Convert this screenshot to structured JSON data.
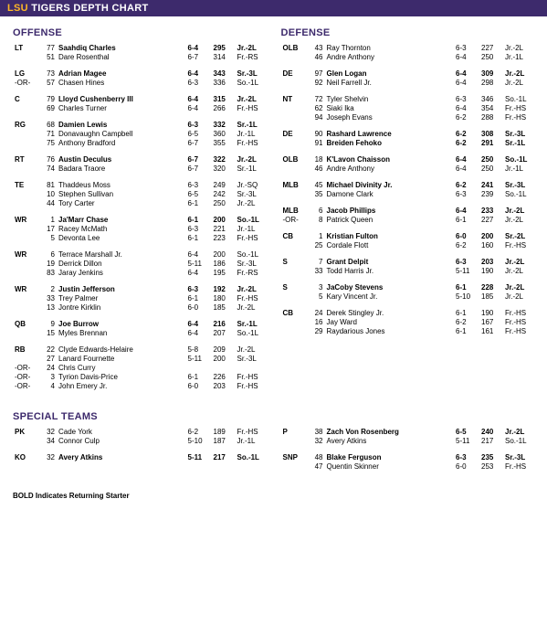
{
  "title": {
    "accent": "LSU",
    "suffix": " TIGERS DEPTH CHART"
  },
  "headers": {
    "offense": "OFFENSE",
    "defense": "DEFENSE",
    "special": "SPECIAL TEAMS"
  },
  "footnote": "BOLD Indicates Returning Starter",
  "offense": [
    {
      "pos": "LT",
      "rows": [
        {
          "s": true,
          "n": "77",
          "name": "Saahdiq Charles",
          "ht": "6-4",
          "wt": "295",
          "cl": "Jr.-2L"
        },
        {
          "s": false,
          "n": "51",
          "name": "Dare Rosenthal",
          "ht": "6-7",
          "wt": "314",
          "cl": "Fr.-RS"
        }
      ]
    },
    {
      "pos": "LG",
      "rows": [
        {
          "s": true,
          "n": "73",
          "name": "Adrian Magee",
          "ht": "6-4",
          "wt": "343",
          "cl": "Sr.-3L"
        },
        {
          "s": false,
          "or": true,
          "n": "57",
          "name": "Chasen Hines",
          "ht": "6-3",
          "wt": "336",
          "cl": "So.-1L"
        }
      ]
    },
    {
      "pos": "C",
      "rows": [
        {
          "s": true,
          "n": "79",
          "name": "Lloyd Cushenberry III",
          "ht": "6-4",
          "wt": "315",
          "cl": "Jr.-2L"
        },
        {
          "s": false,
          "n": "69",
          "name": "Charles Turner",
          "ht": "6-4",
          "wt": "266",
          "cl": "Fr.-HS"
        }
      ]
    },
    {
      "pos": "RG",
      "rows": [
        {
          "s": true,
          "n": "68",
          "name": "Damien Lewis",
          "ht": "6-3",
          "wt": "332",
          "cl": "Sr.-1L"
        },
        {
          "s": false,
          "n": "71",
          "name": "Donavaughn Campbell",
          "ht": "6-5",
          "wt": "360",
          "cl": "Jr.-1L"
        },
        {
          "s": false,
          "n": "75",
          "name": "Anthony Bradford",
          "ht": "6-7",
          "wt": "355",
          "cl": "Fr.-HS"
        }
      ]
    },
    {
      "pos": "RT",
      "rows": [
        {
          "s": true,
          "n": "76",
          "name": "Austin Deculus",
          "ht": "6-7",
          "wt": "322",
          "cl": "Jr.-2L"
        },
        {
          "s": false,
          "n": "74",
          "name": "Badara Traore",
          "ht": "6-7",
          "wt": "320",
          "cl": "Sr.-1L"
        }
      ]
    },
    {
      "pos": "TE",
      "rows": [
        {
          "s": false,
          "n": "81",
          "name": "Thaddeus Moss",
          "ht": "6-3",
          "wt": "249",
          "cl": "Jr.-SQ"
        },
        {
          "s": false,
          "n": "10",
          "name": "Stephen Sullivan",
          "ht": "6-5",
          "wt": "242",
          "cl": "Sr.-3L"
        },
        {
          "s": false,
          "n": "44",
          "name": "Tory Carter",
          "ht": "6-1",
          "wt": "250",
          "cl": "Jr.-2L"
        }
      ]
    },
    {
      "pos": "WR",
      "rows": [
        {
          "s": true,
          "n": "1",
          "name": "Ja'Marr Chase",
          "ht": "6-1",
          "wt": "200",
          "cl": "So.-1L"
        },
        {
          "s": false,
          "n": "17",
          "name": "Racey McMath",
          "ht": "6-3",
          "wt": "221",
          "cl": "Jr.-1L"
        },
        {
          "s": false,
          "n": "5",
          "name": "Devonta Lee",
          "ht": "6-1",
          "wt": "223",
          "cl": "Fr.-HS"
        }
      ]
    },
    {
      "pos": "WR",
      "rows": [
        {
          "s": false,
          "n": "6",
          "name": "Terrace Marshall Jr.",
          "ht": "6-4",
          "wt": "200",
          "cl": "So.-1L"
        },
        {
          "s": false,
          "n": "19",
          "name": "Derrick Dillon",
          "ht": "5-11",
          "wt": "186",
          "cl": "Sr.-3L"
        },
        {
          "s": false,
          "n": "83",
          "name": "Jaray Jenkins",
          "ht": "6-4",
          "wt": "195",
          "cl": "Fr.-RS"
        }
      ]
    },
    {
      "pos": "WR",
      "rows": [
        {
          "s": true,
          "n": "2",
          "name": "Justin Jefferson",
          "ht": "6-3",
          "wt": "192",
          "cl": "Jr.-2L"
        },
        {
          "s": false,
          "n": "33",
          "name": "Trey Palmer",
          "ht": "6-1",
          "wt": "180",
          "cl": "Fr.-HS"
        },
        {
          "s": false,
          "n": "13",
          "name": "Jontre Kirklin",
          "ht": "6-0",
          "wt": "185",
          "cl": "Jr.-2L"
        }
      ]
    },
    {
      "pos": "QB",
      "rows": [
        {
          "s": true,
          "n": "9",
          "name": "Joe Burrow",
          "ht": "6-4",
          "wt": "216",
          "cl": "Sr.-1L"
        },
        {
          "s": false,
          "n": "15",
          "name": "Myles Brennan",
          "ht": "6-4",
          "wt": "207",
          "cl": "So.-1L"
        }
      ]
    },
    {
      "pos": "RB",
      "rows": [
        {
          "s": false,
          "n": "22",
          "name": "Clyde Edwards-Helaire",
          "ht": "5-8",
          "wt": "209",
          "cl": "Jr.-2L"
        },
        {
          "s": false,
          "n": "27",
          "name": "Lanard Fournette",
          "ht": "5-11",
          "wt": "200",
          "cl": "Sr.-3L"
        },
        {
          "s": false,
          "or": true,
          "n": "24",
          "name": "Chris Curry",
          "ht": "",
          "wt": "",
          "cl": ""
        },
        {
          "s": false,
          "or": true,
          "n": "3",
          "name": "Tyrion Davis-Price",
          "ht": "6-1",
          "wt": "226",
          "cl": "Fr.-HS"
        },
        {
          "s": false,
          "or": true,
          "n": "4",
          "name": "John Emery Jr.",
          "ht": "6-0",
          "wt": "203",
          "cl": "Fr.-HS"
        }
      ]
    }
  ],
  "defense": [
    {
      "pos": "OLB",
      "rows": [
        {
          "s": false,
          "n": "43",
          "name": "Ray Thornton",
          "ht": "6-3",
          "wt": "227",
          "cl": "Jr.-2L"
        },
        {
          "s": false,
          "n": "46",
          "name": "Andre Anthony",
          "ht": "6-4",
          "wt": "250",
          "cl": "Jr.-1L"
        }
      ]
    },
    {
      "pos": "DE",
      "rows": [
        {
          "s": true,
          "n": "97",
          "name": "Glen Logan",
          "ht": "6-4",
          "wt": "309",
          "cl": "Jr.-2L"
        },
        {
          "s": false,
          "n": "92",
          "name": "Neil Farrell Jr.",
          "ht": "6-4",
          "wt": "298",
          "cl": "Jr.-2L"
        }
      ]
    },
    {
      "pos": "NT",
      "rows": [
        {
          "s": false,
          "n": "72",
          "name": "Tyler Shelvin",
          "ht": "6-3",
          "wt": "346",
          "cl": "So.-1L"
        },
        {
          "s": false,
          "n": "62",
          "name": "Siaki Ika",
          "ht": "6-4",
          "wt": "354",
          "cl": "Fr.-HS"
        },
        {
          "s": false,
          "n": "94",
          "name": "Joseph Evans",
          "ht": "6-2",
          "wt": "288",
          "cl": "Fr.-HS"
        }
      ]
    },
    {
      "pos": "DE",
      "rows": [
        {
          "s": true,
          "n": "90",
          "name": "Rashard Lawrence",
          "ht": "6-2",
          "wt": "308",
          "cl": "Sr.-3L"
        },
        {
          "s": true,
          "n": "91",
          "name": "Breiden Fehoko",
          "ht": "6-2",
          "wt": "291",
          "cl": "Sr.-1L"
        }
      ]
    },
    {
      "pos": "OLB",
      "rows": [
        {
          "s": true,
          "n": "18",
          "name": "K'Lavon Chaisson",
          "ht": "6-4",
          "wt": "250",
          "cl": "So.-1L"
        },
        {
          "s": false,
          "n": "46",
          "name": "Andre Anthony",
          "ht": "6-4",
          "wt": "250",
          "cl": "Jr.-1L"
        }
      ]
    },
    {
      "pos": "MLB",
      "rows": [
        {
          "s": true,
          "n": "45",
          "name": "Michael Divinity Jr.",
          "ht": "6-2",
          "wt": "241",
          "cl": "Sr.-3L"
        },
        {
          "s": false,
          "n": "35",
          "name": "Damone Clark",
          "ht": "6-3",
          "wt": "239",
          "cl": "So.-1L"
        }
      ]
    },
    {
      "pos": "MLB",
      "rows": [
        {
          "s": true,
          "n": "6",
          "name": "Jacob Phillips",
          "ht": "6-4",
          "wt": "233",
          "cl": "Jr.-2L"
        },
        {
          "s": false,
          "or": true,
          "n": "8",
          "name": "Patrick Queen",
          "ht": "6-1",
          "wt": "227",
          "cl": "Jr.-2L"
        }
      ]
    },
    {
      "pos": "CB",
      "rows": [
        {
          "s": true,
          "n": "1",
          "name": "Kristian Fulton",
          "ht": "6-0",
          "wt": "200",
          "cl": "Sr.-2L"
        },
        {
          "s": false,
          "n": "25",
          "name": "Cordale Flott",
          "ht": "6-2",
          "wt": "160",
          "cl": "Fr.-HS"
        }
      ]
    },
    {
      "pos": "S",
      "rows": [
        {
          "s": true,
          "n": "7",
          "name": "Grant Delpit",
          "ht": "6-3",
          "wt": "203",
          "cl": "Jr.-2L"
        },
        {
          "s": false,
          "n": "33",
          "name": "Todd Harris Jr.",
          "ht": "5-11",
          "wt": "190",
          "cl": "Jr.-2L"
        }
      ]
    },
    {
      "pos": "S",
      "rows": [
        {
          "s": true,
          "n": "3",
          "name": "JaCoby Stevens",
          "ht": "6-1",
          "wt": "228",
          "cl": "Jr.-2L"
        },
        {
          "s": false,
          "n": "5",
          "name": "Kary Vincent Jr.",
          "ht": "5-10",
          "wt": "185",
          "cl": "Jr.-2L"
        }
      ]
    },
    {
      "pos": "CB",
      "rows": [
        {
          "s": false,
          "n": "24",
          "name": "Derek Stingley Jr.",
          "ht": "6-1",
          "wt": "190",
          "cl": "Fr.-HS"
        },
        {
          "s": false,
          "n": "16",
          "name": "Jay Ward",
          "ht": "6-2",
          "wt": "167",
          "cl": "Fr.-HS"
        },
        {
          "s": false,
          "n": "29",
          "name": "Raydarious Jones",
          "ht": "6-1",
          "wt": "161",
          "cl": "Fr.-HS"
        }
      ]
    }
  ],
  "special_left": [
    {
      "pos": "PK",
      "rows": [
        {
          "s": false,
          "n": "32",
          "name": "Cade York",
          "ht": "6-2",
          "wt": "189",
          "cl": "Fr.-HS"
        },
        {
          "s": false,
          "n": "34",
          "name": "Connor Culp",
          "ht": "5-10",
          "wt": "187",
          "cl": "Jr.-1L"
        }
      ]
    },
    {
      "pos": "KO",
      "rows": [
        {
          "s": true,
          "n": "32",
          "name": "Avery Atkins",
          "ht": "5-11",
          "wt": "217",
          "cl": "So.-1L"
        }
      ]
    }
  ],
  "special_right": [
    {
      "pos": "P",
      "rows": [
        {
          "s": true,
          "n": "38",
          "name": "Zach Von Rosenberg",
          "ht": "6-5",
          "wt": "240",
          "cl": "Jr.-2L"
        },
        {
          "s": false,
          "n": "32",
          "name": "Avery Atkins",
          "ht": "5-11",
          "wt": "217",
          "cl": "So.-1L"
        }
      ]
    },
    {
      "pos": "SNP",
      "rows": [
        {
          "s": true,
          "n": "48",
          "name": "Blake Ferguson",
          "ht": "6-3",
          "wt": "235",
          "cl": "Sr.-3L"
        },
        {
          "s": false,
          "n": "47",
          "name": "Quentin Skinner",
          "ht": "6-0",
          "wt": "253",
          "cl": "Fr.-HS"
        }
      ]
    }
  ]
}
